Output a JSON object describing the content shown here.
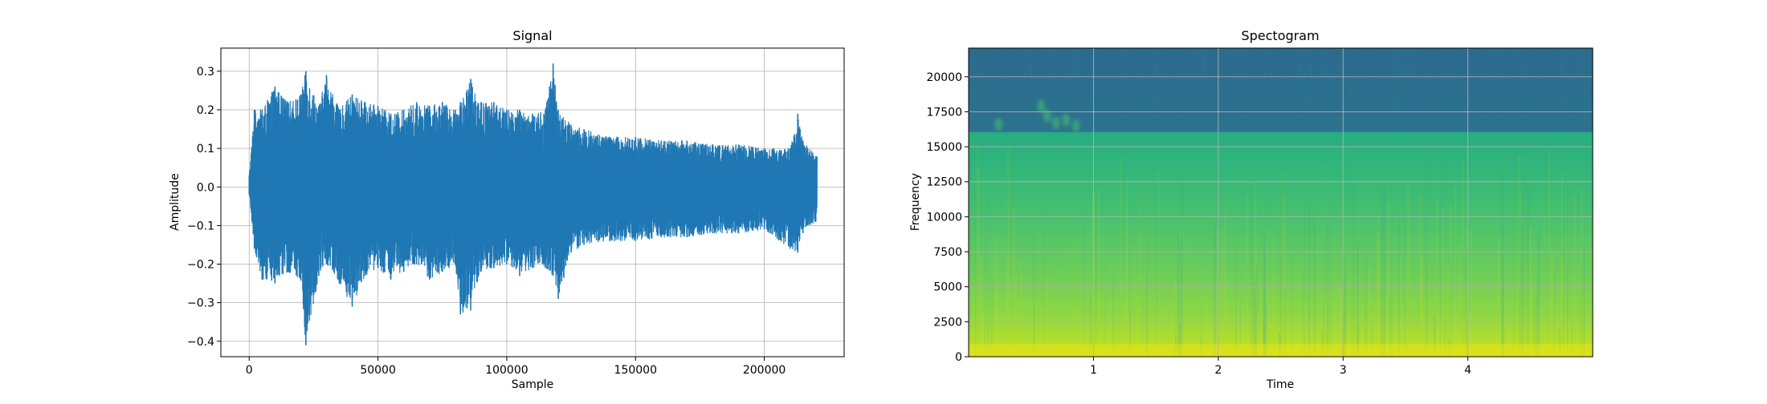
{
  "chart_data": [
    {
      "type": "line",
      "title": "Signal",
      "xlabel": "Sample",
      "ylabel": "Amplitude",
      "xlim": [
        -11000,
        231000
      ],
      "ylim": [
        -0.44,
        0.36
      ],
      "grid": true,
      "xticks": [
        0,
        50000,
        100000,
        150000,
        200000
      ],
      "xtick_labels": [
        "0",
        "50000",
        "100000",
        "150000",
        "200000"
      ],
      "yticks": [
        -0.4,
        -0.3,
        -0.2,
        -0.1,
        0.0,
        0.1,
        0.2,
        0.3
      ],
      "ytick_labels": [
        "−0.4",
        "−0.3",
        "−0.2",
        "−0.1",
        "0.0",
        "0.1",
        "0.2",
        "0.3"
      ],
      "line_color": "#1f77b4",
      "n_samples": 220500,
      "envelope": {
        "x": [
          0,
          2000,
          5000,
          10000,
          15000,
          20000,
          22000,
          27000,
          30000,
          35000,
          40000,
          45000,
          50000,
          55000,
          60000,
          65000,
          70000,
          75000,
          80000,
          82000,
          86000,
          90000,
          95000,
          100000,
          105000,
          110000,
          115000,
          118000,
          120000,
          125000,
          130000,
          140000,
          150000,
          160000,
          170000,
          180000,
          190000,
          200000,
          210000,
          213000,
          215000,
          220000
        ],
        "upper": [
          0.03,
          0.2,
          0.2,
          0.26,
          0.22,
          0.24,
          0.3,
          0.21,
          0.29,
          0.2,
          0.24,
          0.22,
          0.21,
          0.19,
          0.2,
          0.22,
          0.21,
          0.22,
          0.2,
          0.22,
          0.28,
          0.22,
          0.22,
          0.2,
          0.2,
          0.19,
          0.2,
          0.32,
          0.2,
          0.16,
          0.15,
          0.13,
          0.13,
          0.12,
          0.12,
          0.11,
          0.11,
          0.1,
          0.1,
          0.19,
          0.12,
          0.08
        ],
        "lower": [
          -0.02,
          -0.16,
          -0.24,
          -0.25,
          -0.22,
          -0.24,
          -0.41,
          -0.23,
          -0.2,
          -0.25,
          -0.31,
          -0.23,
          -0.21,
          -0.24,
          -0.22,
          -0.2,
          -0.24,
          -0.22,
          -0.2,
          -0.33,
          -0.32,
          -0.22,
          -0.21,
          -0.2,
          -0.23,
          -0.21,
          -0.21,
          -0.23,
          -0.29,
          -0.17,
          -0.15,
          -0.14,
          -0.14,
          -0.13,
          -0.13,
          -0.12,
          -0.12,
          -0.11,
          -0.16,
          -0.17,
          -0.12,
          -0.09
        ]
      }
    },
    {
      "type": "heatmap",
      "title": "Spectogram",
      "xlabel": "Time",
      "ylabel": "Frequency",
      "xlim": [
        0,
        5.0
      ],
      "ylim": [
        0,
        22050
      ],
      "grid": true,
      "xticks": [
        1,
        2,
        3,
        4
      ],
      "xtick_labels": [
        "1",
        "2",
        "3",
        "4"
      ],
      "yticks": [
        0,
        2500,
        5000,
        7500,
        10000,
        12500,
        15000,
        17500,
        20000
      ],
      "ytick_labels": [
        "0",
        "2500",
        "5000",
        "7500",
        "10000",
        "12500",
        "15000",
        "17500",
        "20000"
      ],
      "colormap": "viridis",
      "band_color_stops": [
        {
          "freq": 0,
          "color": "#d2e21b"
        },
        {
          "freq": 1000,
          "color": "#b5de2b"
        },
        {
          "freq": 3000,
          "color": "#8fd744"
        },
        {
          "freq": 6000,
          "color": "#6ccd5a"
        },
        {
          "freq": 10000,
          "color": "#48c16e"
        },
        {
          "freq": 14000,
          "color": "#2fb47c"
        },
        {
          "freq": 16000,
          "color": "#28ae80"
        },
        {
          "freq": 16100,
          "color": "#2c728e"
        },
        {
          "freq": 22050,
          "color": "#2c6b8e"
        }
      ],
      "blob_markers": [
        {
          "t": 0.24,
          "f": 16600
        },
        {
          "t": 0.58,
          "f": 17900
        },
        {
          "t": 0.63,
          "f": 17200
        },
        {
          "t": 0.7,
          "f": 16700
        },
        {
          "t": 0.78,
          "f": 16900
        },
        {
          "t": 0.86,
          "f": 16500
        }
      ]
    }
  ]
}
